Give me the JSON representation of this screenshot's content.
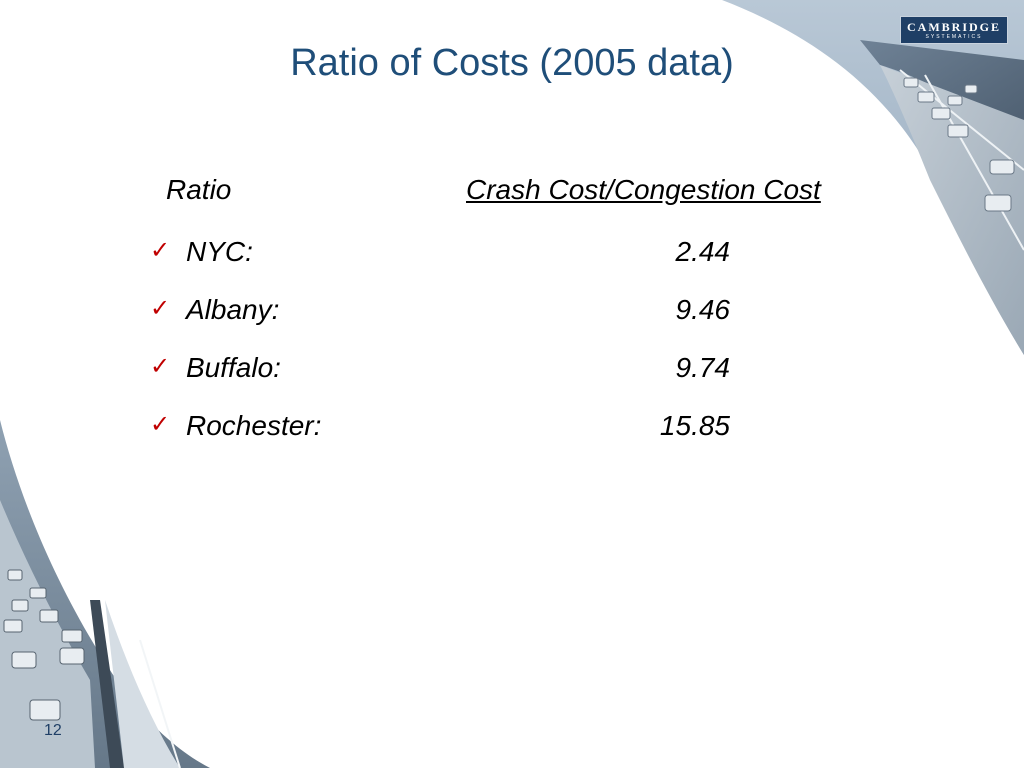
{
  "slide": {
    "title": "Ratio of Costs (2005 data)",
    "page_number": "12"
  },
  "logo": {
    "name": "CAMBRIDGE",
    "tagline": "SYSTEMATICS"
  },
  "table": {
    "header": {
      "label": "Ratio",
      "value": "Crash Cost/Congestion Cost"
    },
    "rows": [
      {
        "city": "NYC:",
        "value": "2.44"
      },
      {
        "city": "Albany:",
        "value": "9.46"
      },
      {
        "city": "Buffalo:",
        "value": "9.74"
      },
      {
        "city": "Rochester:",
        "value": "15.85"
      }
    ]
  },
  "icons": {
    "bullet": "checkmark-icon"
  },
  "colors": {
    "title": "#1f4e79",
    "check": "#c00000",
    "photo_sky": "#9fb4c8",
    "photo_road": "#7f8b97"
  }
}
